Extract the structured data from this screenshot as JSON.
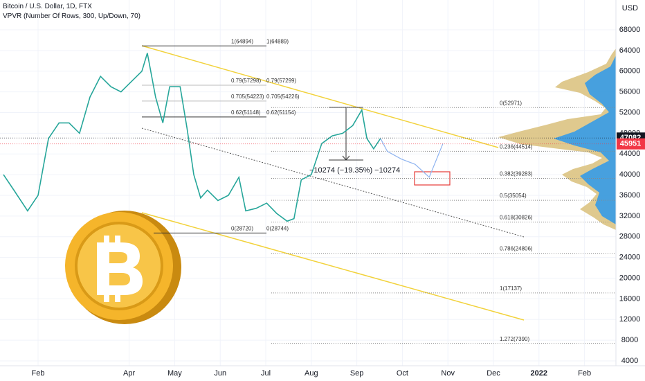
{
  "chart_data": {
    "type": "line",
    "title": "Bitcoin / U.S. Dollar, 1D, FTX",
    "subtitle": "VPVR (Number Of Rows, 300, Up/Down, 70)",
    "y_axis_label": "USD",
    "grid": true,
    "xlim": [
      1.164,
      14.69
    ],
    "ylim": [
      3060,
      73760
    ],
    "xticks": [
      {
        "value": 2,
        "label": "Feb"
      },
      {
        "value": 4,
        "label": "Apr"
      },
      {
        "value": 5,
        "label": "May"
      },
      {
        "value": 6,
        "label": "Jun"
      },
      {
        "value": 7,
        "label": "Jul"
      },
      {
        "value": 8,
        "label": "Aug"
      },
      {
        "value": 9,
        "label": "Sep"
      },
      {
        "value": 10,
        "label": "Oct"
      },
      {
        "value": 11,
        "label": "Nov"
      },
      {
        "value": 12,
        "label": "Dec"
      },
      {
        "value": 13,
        "label": "2022"
      },
      {
        "value": 14,
        "label": "Feb"
      }
    ],
    "yticks": [
      4000,
      8000,
      12000,
      16000,
      20000,
      24000,
      28000,
      32000,
      36000,
      40000,
      44000,
      48000,
      52000,
      56000,
      60000,
      64000,
      68000
    ],
    "series": [
      {
        "color": "#26a69a",
        "x": [
          1.24,
          1.47,
          1.77,
          2.0,
          2.23,
          2.46,
          2.68,
          2.91,
          3.14,
          3.37,
          3.6,
          3.82,
          4.05,
          4.28,
          4.4,
          4.58,
          4.74,
          4.89,
          5.12,
          5.27,
          5.42,
          5.57,
          5.72,
          5.95,
          6.18,
          6.41,
          6.56,
          6.79,
          7.02,
          7.24,
          7.47,
          7.62,
          7.78,
          8.0,
          8.23,
          8.46,
          8.69,
          8.91,
          9.11,
          9.22,
          9.37,
          9.52
        ],
        "values": [
          40000,
          37000,
          33000,
          36000,
          47000,
          50000,
          50000,
          48000,
          55000,
          59000,
          57000,
          56000,
          58000,
          60000,
          63500,
          55000,
          50000,
          57000,
          57000,
          49000,
          40000,
          35500,
          37000,
          35000,
          36000,
          39500,
          33000,
          33500,
          34500,
          32500,
          31000,
          31500,
          39000,
          40000,
          46000,
          47500,
          48000,
          49500,
          52500,
          47000,
          45000,
          47000
        ]
      },
      {
        "color": "#8fb4f0",
        "x": [
          9.52,
          9.67,
          9.98,
          10.28,
          10.59,
          10.89
        ],
        "values": [
          47000,
          44500,
          43000,
          42000,
          39500,
          46000
        ]
      }
    ],
    "fib_left": [
      {
        "value": 64894,
        "label": "1(64894)"
      },
      {
        "value": 57298,
        "label": "0.79(57298)"
      },
      {
        "value": 54223,
        "label": "0.705(54223)"
      },
      {
        "value": 51148,
        "label": "0.62(51148)"
      },
      {
        "value": 28720,
        "label": "0(28720)"
      }
    ],
    "fib_left_2": [
      {
        "value": 64889,
        "label": "1(64889)"
      },
      {
        "value": 57299,
        "label": "0.79(57299)"
      },
      {
        "value": 54226,
        "label": "0.705(54226)"
      },
      {
        "value": 51154,
        "label": "0.62(51154)"
      },
      {
        "value": 28744,
        "label": "0(28744)"
      }
    ],
    "fib_right": [
      {
        "value": 52971,
        "label": "0(52971)"
      },
      {
        "value": 44514,
        "label": "0.236(44514)"
      },
      {
        "value": 39283,
        "label": "0.382(39283)"
      },
      {
        "value": 35054,
        "label": "0.5(35054)"
      },
      {
        "value": 30826,
        "label": "0.618(30826)"
      },
      {
        "value": 24806,
        "label": "0.786(24806)"
      },
      {
        "value": 17137,
        "label": "1(17137)"
      },
      {
        "value": 7390,
        "label": "1.272(7390)"
      }
    ],
    "measure_label": "−10274 (−19.35%) −10274",
    "marker_price": 47082,
    "current_price": 45951
  }
}
